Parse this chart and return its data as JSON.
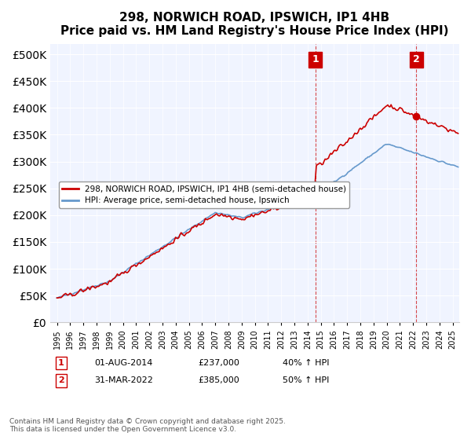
{
  "title": "298, NORWICH ROAD, IPSWICH, IP1 4HB",
  "subtitle": "Price paid vs. HM Land Registry's House Price Index (HPI)",
  "legend_label_red": "298, NORWICH ROAD, IPSWICH, IP1 4HB (semi-detached house)",
  "legend_label_blue": "HPI: Average price, semi-detached house, Ipswich",
  "annotation1_label": "1",
  "annotation1_date": "01-AUG-2014",
  "annotation1_price": "£237,000",
  "annotation1_hpi": "40% ↑ HPI",
  "annotation2_label": "2",
  "annotation2_date": "31-MAR-2022",
  "annotation2_price": "£385,000",
  "annotation2_hpi": "50% ↑ HPI",
  "footer": "Contains HM Land Registry data © Crown copyright and database right 2025.\nThis data is licensed under the Open Government Licence v3.0.",
  "red_color": "#cc0000",
  "blue_color": "#6699cc",
  "dashed_red": "#cc0000",
  "annotation_color": "#cc0000",
  "ylim": [
    0,
    520000
  ],
  "yticks": [
    0,
    50000,
    100000,
    150000,
    200000,
    250000,
    300000,
    350000,
    400000,
    450000,
    500000
  ],
  "xlim_start": 1994.5,
  "xlim_end": 2025.5,
  "sale1_x": 2014.58,
  "sale1_y": 237000,
  "sale2_x": 2022.25,
  "sale2_y": 385000,
  "background_color": "#f0f4ff"
}
